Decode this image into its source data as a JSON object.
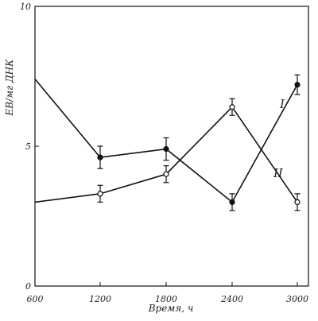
{
  "chart_data": {
    "type": "line",
    "x": [
      "600",
      "1200",
      "1800",
      "2400",
      "3000"
    ],
    "xlabel": "Время, ч",
    "ylabel": "ЕВ/мг ДНК",
    "xlim": [
      600,
      3000
    ],
    "ylim": [
      0,
      10
    ],
    "yticks": [
      "0",
      "5",
      "10"
    ],
    "grid": false,
    "series": [
      {
        "name": "I",
        "marker": "filled-circle",
        "x": [
          600,
          1200,
          1800,
          2400,
          3000
        ],
        "values": [
          7.4,
          4.6,
          4.9,
          3.0,
          7.2
        ],
        "errors": [
          null,
          0.4,
          0.4,
          0.3,
          0.35
        ]
      },
      {
        "name": "II",
        "marker": "open-circle",
        "x": [
          600,
          1200,
          1800,
          2400,
          3000
        ],
        "values": [
          3.0,
          3.3,
          4.0,
          6.4,
          3.0
        ],
        "errors": [
          null,
          0.3,
          0.3,
          0.3,
          0.3
        ]
      }
    ],
    "colors": {
      "line": "#111111",
      "background": "#ffffff"
    }
  }
}
